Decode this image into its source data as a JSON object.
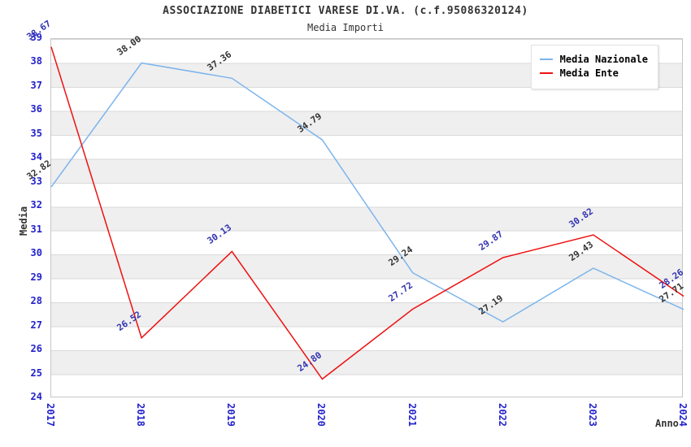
{
  "header": {
    "title": "ASSOCIAZIONE DIABETICI VARESE DI.VA. (c.f.95086320124)",
    "subtitle": "Media Importi"
  },
  "chart_data": {
    "type": "line",
    "title": "ASSOCIAZIONE DIABETICI VARESE DI.VA. (c.f.95086320124)",
    "subtitle": "Media Importi",
    "categories": [
      "2017",
      "2018",
      "2019",
      "2020",
      "2021",
      "2022",
      "2023",
      "2024"
    ],
    "series": [
      {
        "name": "Media Nazionale",
        "color": "#7CB5EC",
        "label_color": "#333333",
        "values": [
          32.82,
          38.0,
          37.36,
          34.79,
          29.24,
          27.19,
          29.43,
          27.71
        ]
      },
      {
        "name": "Media Ente",
        "color": "#EE1111",
        "label_color": "#3333B2",
        "values": [
          38.67,
          26.52,
          30.13,
          24.8,
          27.72,
          29.87,
          30.82,
          28.26
        ]
      }
    ],
    "xlabel": "Anno",
    "ylabel": "Media",
    "ylim": [
      24,
      39
    ],
    "ytick_step": 1,
    "grid": true,
    "band_color": "#EFEFEF",
    "grid_color": "#D9D9D9",
    "tick_color": "#2222CC",
    "legend_position": "top-right"
  }
}
